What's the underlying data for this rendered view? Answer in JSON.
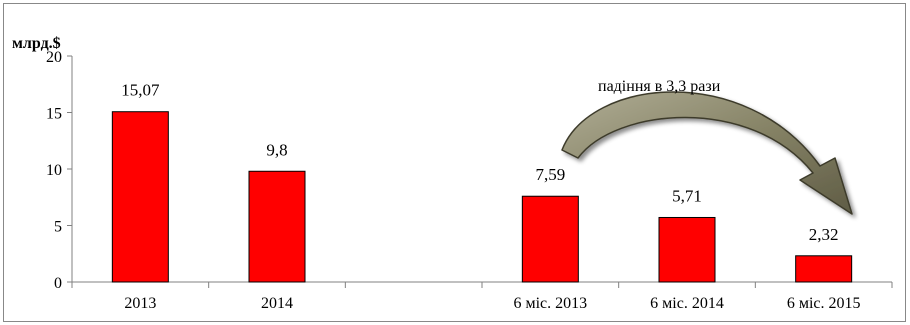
{
  "chart_data": {
    "type": "bar",
    "ylabel": "млрд.$",
    "ylim": [
      0,
      20
    ],
    "yticks": [
      0,
      5,
      10,
      15,
      20
    ],
    "grid": false,
    "categories": [
      "2013",
      "2014",
      "",
      "6 міс. 2013",
      "6 міс. 2014",
      "6 міс. 2015"
    ],
    "values": [
      15.07,
      9.8,
      null,
      7.59,
      5.71,
      2.32
    ],
    "data_labels": [
      "15,07",
      "9,8",
      "",
      "7,59",
      "5,71",
      "2,32"
    ],
    "bar_color": "#ff0000",
    "annotation": "падіння в 3,3 рази",
    "arrow_color": "#77745f"
  }
}
